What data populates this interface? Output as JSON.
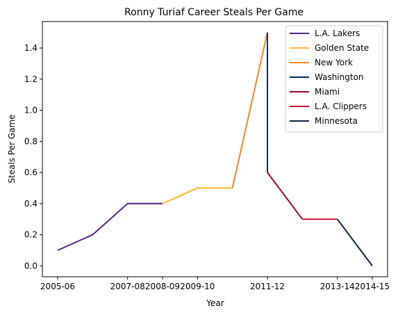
{
  "chart_data": {
    "type": "line",
    "title": "Ronny Turiaf Career Steals Per Game",
    "xlabel": "Year",
    "ylabel": "Steals Per Game",
    "seasons": [
      "2005-06",
      "2006-07",
      "2007-08",
      "2008-09",
      "2009-10",
      "2010-11",
      "2011-12",
      "2012-13",
      "2013-14",
      "2014-15"
    ],
    "xticks": [
      "2005-06",
      "2007-08",
      "2008-09",
      "2009-10",
      "2011-12",
      "2013-14",
      "2014-15"
    ],
    "yticks": [
      "0.0",
      "0.2",
      "0.4",
      "0.6",
      "0.8",
      "1.0",
      "1.2",
      "1.4"
    ],
    "ylim": [
      -0.07,
      1.57
    ],
    "legend_position": "upper-right",
    "series": [
      {
        "name": "L.A. Lakers",
        "color": "#552583",
        "points": [
          [
            "2005-06",
            0.1
          ],
          [
            "2006-07",
            0.2
          ],
          [
            "2007-08",
            0.4
          ],
          [
            "2008-09",
            0.4
          ]
        ]
      },
      {
        "name": "Golden State",
        "color": "#FDB927",
        "points": [
          [
            "2008-09",
            0.4
          ],
          [
            "2009-10",
            0.5
          ],
          [
            "2010-11",
            0.5
          ]
        ]
      },
      {
        "name": "New York",
        "color": "#F58426",
        "points": [
          [
            "2010-11",
            0.5
          ],
          [
            "2011-12",
            1.5
          ]
        ]
      },
      {
        "name": "Washington",
        "color": "#002B5C",
        "points": [
          [
            "2011-12",
            1.5
          ],
          [
            "2011-12",
            0.6
          ]
        ]
      },
      {
        "name": "Miami",
        "color": "#98002E",
        "points": [
          [
            "2011-12",
            0.6
          ],
          [
            "2012-13",
            0.3
          ]
        ]
      },
      {
        "name": "L.A. Clippers",
        "color": "#C8102E",
        "points": [
          [
            "2012-13",
            0.3
          ],
          [
            "2013-14",
            0.3
          ]
        ]
      },
      {
        "name": "Minnesota",
        "color": "#0C2340",
        "points": [
          [
            "2013-14",
            0.3
          ],
          [
            "2014-15",
            0.0
          ]
        ]
      }
    ]
  }
}
